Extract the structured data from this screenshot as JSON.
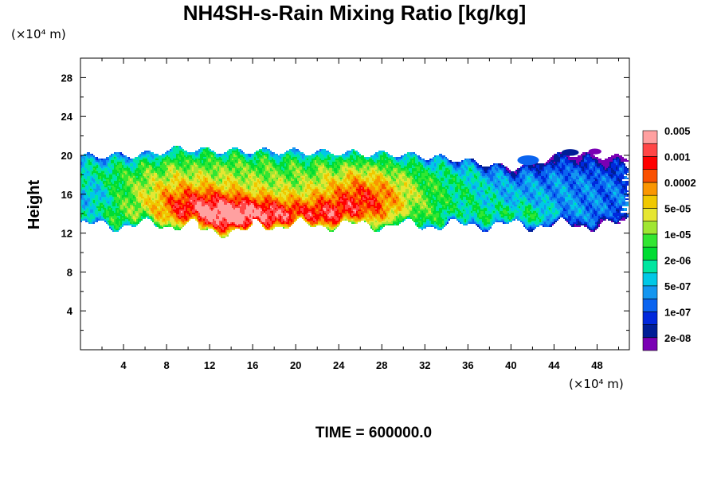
{
  "chart_data": {
    "type": "heatmap",
    "title": "NH4SH-s-Rain Mixing Ratio [kg/kg]",
    "ylabel": "Height",
    "x_unit": "(×10⁴ m)",
    "y_unit": "(×10⁴ m)",
    "footer": "TIME = 600000.0",
    "xlim": [
      0,
      51
    ],
    "ylim": [
      0,
      30
    ],
    "x_ticks": [
      4,
      8,
      12,
      16,
      20,
      24,
      28,
      32,
      36,
      40,
      44,
      48
    ],
    "y_ticks": [
      4,
      8,
      12,
      16,
      20,
      24,
      28
    ],
    "colorbar": {
      "colors": [
        "#7a00b4",
        "#001e96",
        "#0028dc",
        "#0a64f0",
        "#1496f0",
        "#00c8e6",
        "#00e6a0",
        "#00dc32",
        "#32e632",
        "#a0e632",
        "#e6e632",
        "#f0c800",
        "#fa9600",
        "#fa5000",
        "#ff0000",
        "#ff4646",
        "#ffa0a0"
      ],
      "labels": [
        "2e-08",
        "1e-07",
        "5e-07",
        "2e-06",
        "1e-05",
        "5e-05",
        "0.0002",
        "0.001",
        "0.005"
      ]
    },
    "field_note": "cloud layer between heights ~12 and ~20.5; maximum near x≈14, y≈13.5"
  }
}
